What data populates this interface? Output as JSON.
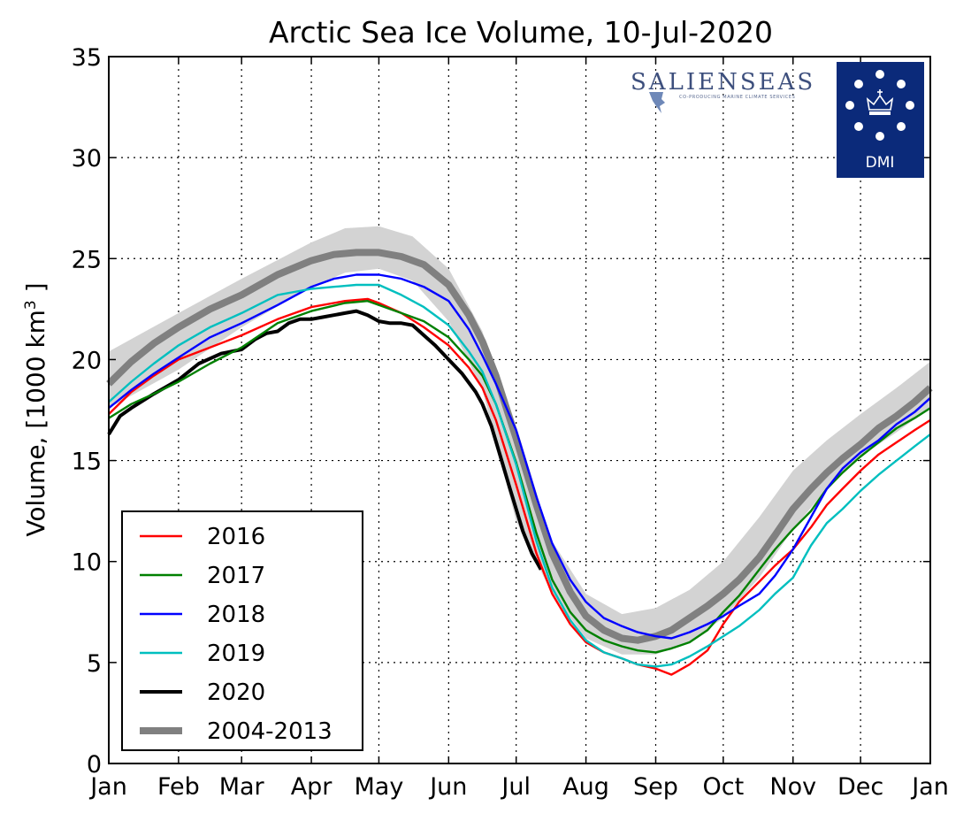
{
  "chart_data": {
    "type": "line",
    "title": "Arctic Sea Ice Volume, 10-Jul-2020",
    "ylabel_prefix": "Volume, [1000 km",
    "ylabel_sup": "3",
    "ylabel_suffix": " ]",
    "xlabel": "",
    "xlim": [
      0,
      365
    ],
    "ylim": [
      0,
      35
    ],
    "grid": true,
    "legend_position": "lower-left",
    "x_ticks": [
      {
        "label": "Jan",
        "day": 0
      },
      {
        "label": "Feb",
        "day": 31
      },
      {
        "label": "Mar",
        "day": 59
      },
      {
        "label": "Apr",
        "day": 90
      },
      {
        "label": "May",
        "day": 120
      },
      {
        "label": "Jun",
        "day": 151
      },
      {
        "label": "Jul",
        "day": 181
      },
      {
        "label": "Aug",
        "day": 212
      },
      {
        "label": "Sep",
        "day": 243
      },
      {
        "label": "Oct",
        "day": 273
      },
      {
        "label": "Nov",
        "day": 304
      },
      {
        "label": "Dec",
        "day": 334
      },
      {
        "label": "Jan",
        "day": 365
      }
    ],
    "y_ticks": [
      0,
      5,
      10,
      15,
      20,
      25,
      30,
      35
    ],
    "band": {
      "label": "2004-2013 range",
      "color": "#d3d3d3",
      "x": [
        0,
        31,
        59,
        90,
        105,
        120,
        135,
        151,
        166,
        181,
        197,
        212,
        228,
        243,
        258,
        273,
        289,
        304,
        319,
        334,
        350,
        365
      ],
      "upper": [
        20.4,
        22.3,
        24.0,
        25.8,
        26.5,
        26.6,
        26.1,
        24.5,
        21.4,
        16.0,
        11.0,
        8.4,
        7.4,
        7.7,
        8.6,
        10.0,
        12.2,
        14.5,
        16.0,
        17.3,
        18.6,
        19.9
      ],
      "lower": [
        17.6,
        19.5,
        21.6,
        23.6,
        24.3,
        24.5,
        23.9,
        21.9,
        18.5,
        12.0,
        8.4,
        6.2,
        5.4,
        5.4,
        6.0,
        7.2,
        9.2,
        11.6,
        13.6,
        15.2,
        16.4,
        17.6
      ]
    },
    "series": [
      {
        "name": "2016",
        "color": "#ff0000",
        "width": 2.4,
        "x": [
          0,
          10,
          20,
          31,
          45,
          59,
          75,
          90,
          105,
          115,
          120,
          130,
          140,
          151,
          160,
          166,
          172,
          181,
          190,
          197,
          205,
          212,
          220,
          228,
          235,
          243,
          250,
          258,
          266,
          273,
          280,
          289,
          296,
          304,
          312,
          319,
          326,
          334,
          342,
          350,
          358,
          365
        ],
        "y": [
          17.3,
          18.4,
          19.2,
          20.0,
          20.6,
          21.2,
          22.0,
          22.6,
          22.9,
          23.0,
          22.8,
          22.3,
          21.6,
          20.7,
          19.6,
          18.6,
          17.0,
          13.8,
          10.4,
          8.4,
          6.9,
          6.0,
          5.5,
          5.2,
          4.9,
          4.7,
          4.4,
          4.9,
          5.6,
          6.9,
          8.0,
          9.0,
          9.8,
          10.6,
          11.7,
          12.8,
          13.6,
          14.5,
          15.3,
          15.9,
          16.5,
          17.0
        ]
      },
      {
        "name": "2017",
        "color": "#008000",
        "width": 2.4,
        "x": [
          0,
          10,
          20,
          31,
          45,
          59,
          75,
          90,
          105,
          115,
          120,
          130,
          140,
          151,
          160,
          166,
          172,
          181,
          190,
          197,
          205,
          212,
          220,
          228,
          235,
          243,
          250,
          258,
          266,
          273,
          280,
          289,
          296,
          304,
          312,
          319,
          326,
          334,
          342,
          350,
          358,
          365
        ],
        "y": [
          17.1,
          17.8,
          18.3,
          18.9,
          19.8,
          20.6,
          21.8,
          22.4,
          22.8,
          22.9,
          22.7,
          22.3,
          21.9,
          21.1,
          20.0,
          19.2,
          17.8,
          14.9,
          11.4,
          9.1,
          7.5,
          6.6,
          6.1,
          5.8,
          5.6,
          5.5,
          5.7,
          6.0,
          6.6,
          7.5,
          8.3,
          9.6,
          10.6,
          11.6,
          12.5,
          13.6,
          14.4,
          15.2,
          15.9,
          16.6,
          17.1,
          17.6
        ]
      },
      {
        "name": "2018",
        "color": "#0000ff",
        "width": 2.4,
        "x": [
          0,
          10,
          20,
          31,
          45,
          59,
          75,
          90,
          100,
          110,
          120,
          130,
          140,
          151,
          160,
          166,
          172,
          181,
          190,
          197,
          205,
          212,
          220,
          228,
          235,
          243,
          250,
          258,
          266,
          273,
          280,
          289,
          296,
          304,
          312,
          319,
          326,
          334,
          342,
          350,
          358,
          365
        ],
        "y": [
          17.6,
          18.5,
          19.3,
          20.1,
          21.1,
          21.8,
          22.7,
          23.6,
          24.0,
          24.2,
          24.2,
          24.0,
          23.6,
          22.9,
          21.5,
          20.2,
          18.8,
          16.5,
          13.2,
          10.9,
          9.1,
          8.0,
          7.2,
          6.8,
          6.5,
          6.3,
          6.2,
          6.5,
          6.9,
          7.3,
          7.8,
          8.4,
          9.3,
          10.6,
          12.2,
          13.6,
          14.6,
          15.4,
          16.0,
          16.8,
          17.4,
          18.1
        ]
      },
      {
        "name": "2019",
        "color": "#00bfbf",
        "width": 2.4,
        "x": [
          0,
          10,
          20,
          31,
          45,
          59,
          75,
          90,
          100,
          110,
          120,
          130,
          140,
          151,
          160,
          166,
          172,
          181,
          190,
          197,
          205,
          212,
          220,
          228,
          235,
          243,
          250,
          258,
          266,
          273,
          280,
          289,
          296,
          304,
          312,
          319,
          326,
          334,
          342,
          350,
          358,
          365
        ],
        "y": [
          17.9,
          18.9,
          19.8,
          20.7,
          21.6,
          22.3,
          23.2,
          23.5,
          23.6,
          23.7,
          23.7,
          23.2,
          22.6,
          21.7,
          20.4,
          19.4,
          17.8,
          14.8,
          11.0,
          8.7,
          7.1,
          6.1,
          5.5,
          5.2,
          4.9,
          4.8,
          4.9,
          5.3,
          5.8,
          6.3,
          6.8,
          7.6,
          8.4,
          9.2,
          10.8,
          11.9,
          12.6,
          13.5,
          14.3,
          15.0,
          15.7,
          16.3
        ]
      },
      {
        "name": "2020",
        "color": "#000000",
        "width": 4,
        "x": [
          0,
          5,
          10,
          20,
          31,
          40,
          50,
          59,
          65,
          70,
          75,
          80,
          85,
          90,
          95,
          100,
          105,
          110,
          115,
          120,
          125,
          130,
          135,
          140,
          145,
          151,
          157,
          163,
          166,
          170,
          174,
          178,
          181,
          184,
          188,
          192
        ],
        "y": [
          16.3,
          17.2,
          17.6,
          18.3,
          19.0,
          19.8,
          20.3,
          20.5,
          21.0,
          21.3,
          21.4,
          21.8,
          22.0,
          22.0,
          22.1,
          22.2,
          22.3,
          22.4,
          22.2,
          21.9,
          21.8,
          21.8,
          21.7,
          21.2,
          20.7,
          20.0,
          19.3,
          18.4,
          17.8,
          16.7,
          15.2,
          13.7,
          12.6,
          11.5,
          10.4,
          9.6
        ]
      },
      {
        "name": "2004-2013",
        "color": "#808080",
        "width": 8,
        "x": [
          0,
          10,
          20,
          31,
          45,
          59,
          75,
          90,
          100,
          110,
          120,
          130,
          140,
          151,
          160,
          166,
          172,
          181,
          190,
          197,
          205,
          212,
          220,
          228,
          235,
          243,
          250,
          258,
          266,
          273,
          280,
          289,
          296,
          304,
          312,
          319,
          326,
          334,
          342,
          350,
          358,
          365
        ],
        "y": [
          18.8,
          19.9,
          20.8,
          21.6,
          22.5,
          23.2,
          24.2,
          24.9,
          25.2,
          25.3,
          25.3,
          25.1,
          24.7,
          23.7,
          22.2,
          20.9,
          19.2,
          16.1,
          12.8,
          10.4,
          8.5,
          7.3,
          6.6,
          6.2,
          6.1,
          6.3,
          6.6,
          7.2,
          7.8,
          8.4,
          9.1,
          10.2,
          11.3,
          12.6,
          13.6,
          14.4,
          15.1,
          15.8,
          16.6,
          17.2,
          17.9,
          18.6
        ]
      }
    ]
  },
  "logos": {
    "salienseas": "SALIENSEAS",
    "salienseas_tagline": "CO-PRODUCING MARINE CLIMATE SERVICES",
    "dmi": "DMI",
    "dmi_bg": "#0b2a7a"
  }
}
